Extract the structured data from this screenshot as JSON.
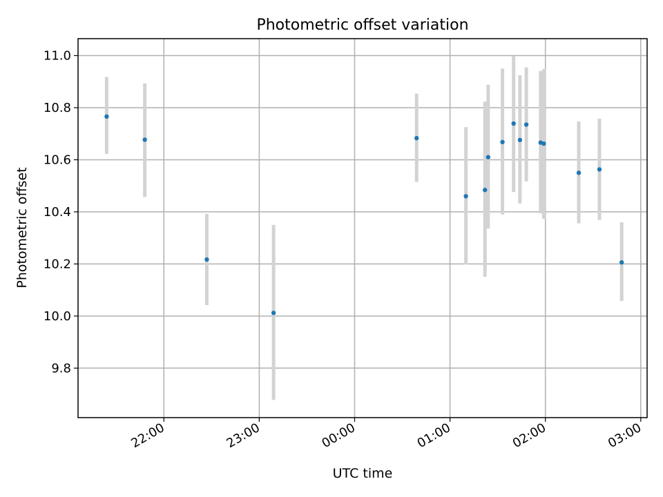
{
  "chart_data": {
    "type": "scatter",
    "title": "Photometric offset variation",
    "xlabel": "UTC time",
    "ylabel": "Photometric offset",
    "x_type": "time",
    "xlim": [
      "21:06",
      "03:04"
    ],
    "ylim": [
      9.61,
      11.065
    ],
    "x_ticks": [
      "22:00",
      "23:00",
      "00:00",
      "01:00",
      "02:00",
      "03:00"
    ],
    "y_ticks": [
      "9.8",
      "10.0",
      "10.2",
      "10.4",
      "10.6",
      "10.8",
      "11.0"
    ],
    "grid": true,
    "point_color": "#1f77b4",
    "errorbar_color": "#d3d3d3",
    "points": [
      {
        "x": "21:24",
        "y": 10.766,
        "yerr_low": 10.622,
        "yerr_high": 10.918
      },
      {
        "x": "21:48",
        "y": 10.677,
        "yerr_low": 10.457,
        "yerr_high": 10.893
      },
      {
        "x": "22:27",
        "y": 10.217,
        "yerr_low": 10.042,
        "yerr_high": 10.392
      },
      {
        "x": "23:09",
        "y": 10.012,
        "yerr_low": 9.678,
        "yerr_high": 10.35
      },
      {
        "x": "00:39",
        "y": 10.683,
        "yerr_low": 10.515,
        "yerr_high": 10.854
      },
      {
        "x": "01:10",
        "y": 10.46,
        "yerr_low": 10.198,
        "yerr_high": 10.725
      },
      {
        "x": "01:22",
        "y": 10.484,
        "yerr_low": 10.151,
        "yerr_high": 10.823
      },
      {
        "x": "01:24",
        "y": 10.61,
        "yerr_low": 10.336,
        "yerr_high": 10.888
      },
      {
        "x": "01:33",
        "y": 10.668,
        "yerr_low": 10.39,
        "yerr_high": 10.95
      },
      {
        "x": "01:40",
        "y": 10.739,
        "yerr_low": 10.476,
        "yerr_high": 10.998
      },
      {
        "x": "01:44",
        "y": 10.676,
        "yerr_low": 10.432,
        "yerr_high": 10.925
      },
      {
        "x": "01:48",
        "y": 10.735,
        "yerr_low": 10.517,
        "yerr_high": 10.955
      },
      {
        "x": "01:57",
        "y": 10.666,
        "yerr_low": 10.394,
        "yerr_high": 10.941
      },
      {
        "x": "01:59",
        "y": 10.662,
        "yerr_low": 10.373,
        "yerr_high": 10.948
      },
      {
        "x": "02:21",
        "y": 10.55,
        "yerr_low": 10.356,
        "yerr_high": 10.747
      },
      {
        "x": "02:34",
        "y": 10.563,
        "yerr_low": 10.369,
        "yerr_high": 10.758
      },
      {
        "x": "02:48",
        "y": 10.206,
        "yerr_low": 10.058,
        "yerr_high": 10.36
      }
    ]
  }
}
